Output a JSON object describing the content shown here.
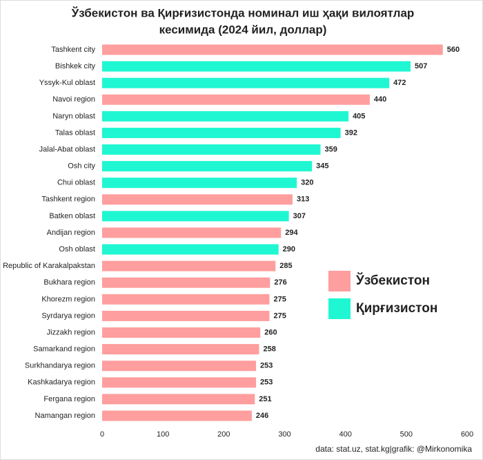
{
  "chart_data": {
    "type": "bar",
    "orientation": "horizontal",
    "title": [
      "Ўзбекистон ва Қирғизистонда номинал иш ҳақи вилоятлар",
      "кесимида (2024 йил, доллар)"
    ],
    "categories": [
      "Tashkent city",
      "Bishkek city",
      "Yssyk-Kul oblast",
      "Navoi region",
      "Naryn oblast",
      "Talas oblast",
      "Jalal-Abat oblast",
      "Osh city",
      "Chui oblast",
      "Tashkent region",
      "Batken oblast",
      "Andijan region",
      "Osh oblast",
      "Republic of Karakalpakstan",
      "Bukhara region",
      "Khorezm region",
      "Syrdarya region",
      "Jizzakh region",
      "Samarkand region",
      "Surkhandarya region",
      "Kashkadarya region",
      "Fergana region",
      "Namangan region"
    ],
    "series": [
      {
        "name": "Ўзбекистон",
        "color": "#ff9e9e",
        "values": [
          560,
          null,
          null,
          440,
          null,
          null,
          null,
          null,
          null,
          313,
          null,
          294,
          null,
          285,
          276,
          275,
          275,
          260,
          258,
          253,
          253,
          251,
          246
        ]
      },
      {
        "name": "Қирғизистон",
        "color": "#1ff7d2",
        "values": [
          null,
          507,
          472,
          null,
          405,
          392,
          359,
          345,
          320,
          null,
          307,
          null,
          290,
          null,
          null,
          null,
          null,
          null,
          null,
          null,
          null,
          null,
          null
        ]
      }
    ],
    "xlim": [
      0,
      600
    ],
    "xticks": [
      0,
      100,
      200,
      300,
      400,
      500,
      600
    ],
    "grid": false,
    "legend": "right",
    "source": "data: stat.uz, stat.kg|grafik: @Mirkonomika"
  }
}
